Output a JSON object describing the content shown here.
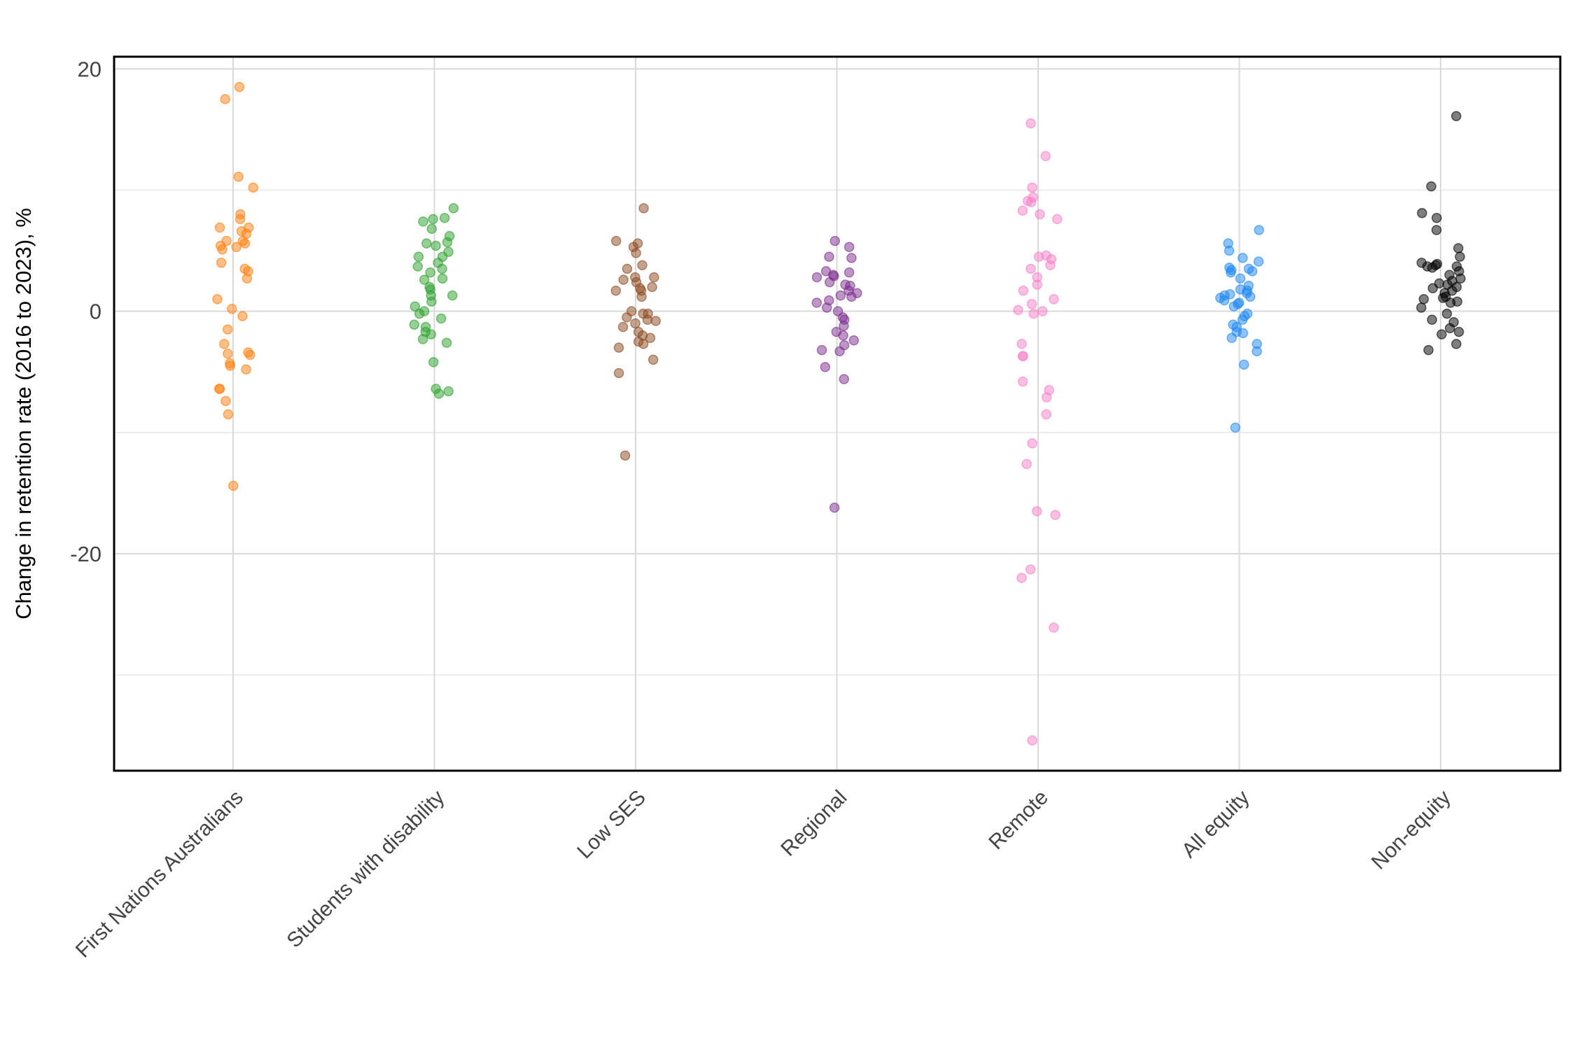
{
  "chart_data": {
    "type": "scatter",
    "subtype": "jittered strip plot",
    "title": "",
    "xlabel": "",
    "ylabel": "Change in retention rate (2016 to 2023), %",
    "ylim": [
      -37.9,
      21
    ],
    "yticks": [
      20,
      0,
      -20
    ],
    "ytick_labels": [
      "20",
      "0",
      "-20"
    ],
    "grid": true,
    "legend": "none",
    "categories": [
      "First Nations Australians",
      "Students with disability",
      "Low SES",
      "Regional",
      "Remote",
      "All equity",
      "Non-equity"
    ],
    "series": [
      {
        "name": "First Nations Australians",
        "color": "#ff7f0e",
        "values": [
          18.5,
          17.5,
          11.1,
          10.2,
          8.0,
          7.6,
          6.9,
          6.9,
          6.6,
          6.4,
          5.8,
          5.8,
          5.6,
          5.4,
          5.3,
          5.1,
          4.0,
          3.5,
          3.3,
          2.7,
          1.0,
          0.2,
          -0.4,
          -1.5,
          -2.7,
          -3.5,
          -3.6,
          -3.4,
          -4.3,
          -4.5,
          -4.8,
          -6.4,
          -6.4,
          -7.4,
          -8.5,
          -14.4
        ]
      },
      {
        "name": "Students with disability",
        "color": "#2ca02c",
        "values": [
          8.5,
          7.6,
          7.7,
          7.4,
          6.8,
          6.2,
          5.7,
          5.6,
          5.4,
          4.9,
          4.5,
          4.5,
          4.0,
          3.7,
          3.5,
          3.2,
          2.7,
          2.6,
          2.0,
          1.8,
          1.3,
          1.3,
          0.8,
          0.4,
          0,
          -0.2,
          -0.6,
          -1.1,
          -1.3,
          -1.7,
          -1.9,
          -2.3,
          -2.6,
          -4.2,
          -6.4,
          -6.6,
          -6.8
        ]
      },
      {
        "name": "Low SES",
        "color": "#8c4a1f",
        "values": [
          8.5,
          5.8,
          5.6,
          5.3,
          4.8,
          3.8,
          3.5,
          2.8,
          2.8,
          2.6,
          2.4,
          2.0,
          1.9,
          1.7,
          1.7,
          1.2,
          0,
          -0.2,
          -0.2,
          -0.5,
          -0.7,
          -0.8,
          -1.0,
          -1.3,
          -1.7,
          -2.0,
          -2.2,
          -2.5,
          -2.7,
          -3.0,
          -4.0,
          -5.1,
          -11.9
        ]
      },
      {
        "name": "Regional",
        "color": "#7b2d8e",
        "values": [
          5.8,
          5.3,
          4.5,
          4.4,
          3.3,
          3.2,
          3.0,
          2.9,
          2.8,
          2.4,
          2.2,
          2.1,
          1.7,
          1.5,
          1.3,
          1.2,
          0.9,
          0.7,
          0.3,
          0,
          -0.5,
          -0.7,
          -1.2,
          -1.7,
          -2.0,
          -2.4,
          -2.8,
          -3.2,
          -3.3,
          -4.6,
          -5.6,
          -16.2
        ]
      },
      {
        "name": "Remote",
        "color": "#f77fc8",
        "values": [
          15.5,
          12.8,
          10.2,
          9.4,
          9.1,
          9.0,
          8.3,
          8.0,
          7.6,
          4.6,
          4.5,
          4.3,
          3.8,
          3.5,
          2.8,
          2.2,
          1.7,
          1.0,
          0.6,
          0.1,
          0,
          -0.2,
          -2.7,
          -3.7,
          -3.7,
          -5.8,
          -6.5,
          -7.1,
          -8.5,
          -10.9,
          -12.6,
          -16.5,
          -16.8,
          -21.3,
          -22.0,
          -26.1,
          -35.4
        ]
      },
      {
        "name": "All equity",
        "color": "#1e88f0",
        "values": [
          6.7,
          5.6,
          5.0,
          4.4,
          4.1,
          3.6,
          3.5,
          3.4,
          3.3,
          3.2,
          2.7,
          2.1,
          1.8,
          1.7,
          1.5,
          1.4,
          1.3,
          1.2,
          1.1,
          0.9,
          0.7,
          0.6,
          0.4,
          -0.2,
          -0.4,
          -0.7,
          -1.1,
          -1.3,
          -1.7,
          -1.8,
          -2.2,
          -2.7,
          -3.3,
          -4.4,
          -9.6
        ]
      },
      {
        "name": "Non-equity",
        "color": "#000000",
        "values": [
          16.1,
          10.3,
          8.1,
          7.7,
          6.7,
          5.2,
          4.5,
          4.0,
          3.9,
          3.8,
          3.7,
          3.7,
          3.6,
          3.3,
          3.0,
          2.7,
          2.5,
          2.3,
          2.2,
          2.0,
          1.9,
          1.7,
          1.5,
          1.2,
          1.1,
          1.0,
          0.8,
          0.7,
          0.3,
          -0.2,
          -0.7,
          -0.9,
          -1.4,
          -1.7,
          -1.9,
          -2.7,
          -3.2
        ]
      }
    ]
  }
}
